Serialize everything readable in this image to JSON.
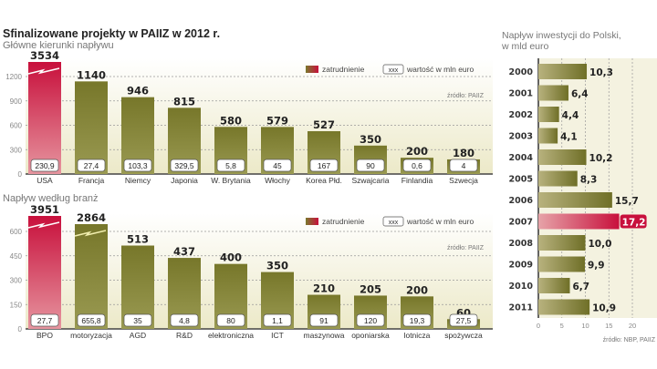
{
  "title": "Sfinalizowane projekty w PAIIZ w 2012 r.",
  "colors": {
    "olive": "#7a7a2e",
    "red": "#c8103c",
    "bg": "#f1efd9"
  },
  "chart_data": [
    {
      "type": "bar",
      "title": "Główne kierunki napływu",
      "ylim": [
        0,
        1300
      ],
      "yticks": [
        "0",
        "300",
        "600",
        "900",
        "1200"
      ],
      "categories": [
        "USA",
        "Francja",
        "Niemcy",
        "Japonia",
        "W. Brytania",
        "Włochy",
        "Korea Płd.",
        "Szwajcaria",
        "Finlandia",
        "Szwecja"
      ],
      "values": [
        3534,
        1140,
        946,
        815,
        580,
        579,
        527,
        350,
        200,
        180
      ],
      "value_labels": [
        "3534",
        "1140",
        "946",
        "815",
        "580",
        "579",
        "527",
        "350",
        "200",
        "180"
      ],
      "investment": [
        "230,9",
        "27,4",
        "103,3",
        "329,5",
        "5,8",
        "45",
        "167",
        "90",
        "0,6",
        "4"
      ],
      "broken": [
        true,
        false,
        false,
        false,
        false,
        false,
        false,
        false,
        false,
        false
      ],
      "highlight": 0,
      "legend": {
        "employment": "zatrudnienie",
        "box": "xxx",
        "value": "wartość w mln euro"
      },
      "source": "źródło: PAIIZ"
    },
    {
      "type": "bar",
      "title": "Napływ według branż",
      "ylim": [
        0,
        650
      ],
      "yticks": [
        "0",
        "150",
        "300",
        "450",
        "600"
      ],
      "categories": [
        "BPO",
        "motoryzacja",
        "AGD",
        "R&D",
        "elektroniczna",
        "ICT",
        "maszynowa",
        "oponiarska",
        "lotnicza",
        "spożywcza"
      ],
      "values": [
        3951,
        2864,
        513,
        437,
        400,
        350,
        210,
        205,
        200,
        60
      ],
      "value_labels": [
        "3951",
        "2864",
        "513",
        "437",
        "400",
        "350",
        "210",
        "205",
        "200",
        "60"
      ],
      "investment": [
        "27,7",
        "655,8",
        "35",
        "4,8",
        "80",
        "1,1",
        "91",
        "120",
        "19,3",
        "27,5"
      ],
      "broken": [
        true,
        true,
        false,
        false,
        false,
        false,
        false,
        false,
        false,
        false
      ],
      "highlight": 0,
      "legend": {
        "employment": "zatrudnienie",
        "box": "xxx",
        "value": "wartość w mln euro"
      },
      "source": "źródło: PAIIZ"
    },
    {
      "type": "bar",
      "orientation": "horizontal",
      "title": "Napływ inwestycji do Polski,",
      "subtitle": "w mld euro",
      "xlim": [
        0,
        20
      ],
      "xticks": [
        "0",
        "5",
        "10",
        "15",
        "20"
      ],
      "categories": [
        "2000",
        "2001",
        "2002",
        "2003",
        "2004",
        "2005",
        "2006",
        "2007",
        "2008",
        "2009",
        "2010",
        "2011"
      ],
      "values": [
        10.3,
        6.4,
        4.4,
        4.1,
        10.2,
        8.3,
        15.7,
        17.2,
        10.0,
        9.9,
        6.7,
        10.9
      ],
      "value_labels": [
        "10,3",
        "6,4",
        "4,4",
        "4,1",
        "10,2",
        "8,3",
        "15,7",
        "17,2",
        "10,0",
        "9,9",
        "6,7",
        "10,9"
      ],
      "highlight": 7,
      "source": "źródło: NBP, PAIIZ"
    }
  ]
}
